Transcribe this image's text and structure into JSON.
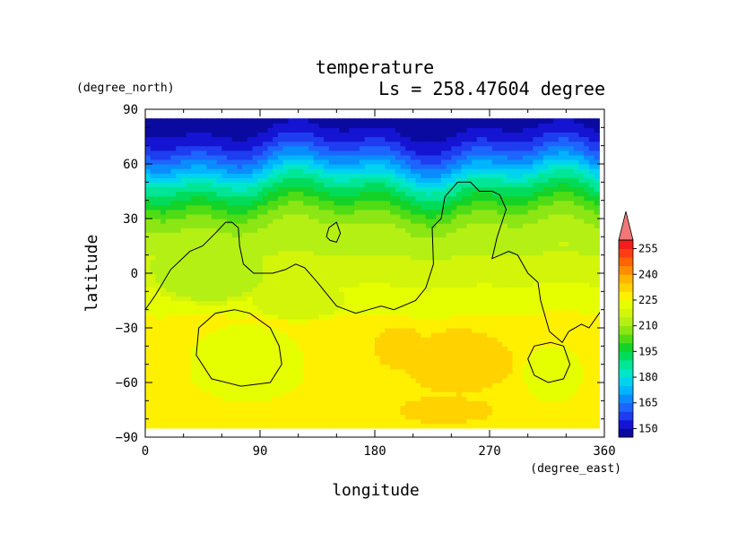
{
  "chart_data": {
    "type": "heatmap",
    "title": "temperature",
    "subtitle": "Ls = 258.47604 degree",
    "xlabel": "longitude",
    "ylabel": "latitude",
    "x_units": "(degree_east)",
    "y_units": "(degree_north)",
    "xlim": [
      0,
      360
    ],
    "ylim": [
      -90,
      90
    ],
    "x_ticks": [
      0,
      90,
      180,
      270,
      360
    ],
    "y_ticks": [
      -90,
      -60,
      -30,
      0,
      30,
      60,
      90
    ],
    "x_tick_labels": [
      "0",
      "90",
      "180",
      "270",
      "360"
    ],
    "y_tick_labels": [
      "−90",
      "−60",
      "−30",
      "0",
      "30",
      "60",
      "90"
    ],
    "colorbar": {
      "levels": [
        145,
        150,
        155,
        160,
        165,
        170,
        175,
        180,
        185,
        190,
        195,
        200,
        205,
        210,
        215,
        220,
        225,
        230,
        235,
        240,
        245,
        250,
        255,
        260
      ],
      "colors": [
        "#0a0aa0",
        "#1414d2",
        "#1e3cf0",
        "#1e64ff",
        "#0a8cff",
        "#00b4ff",
        "#00d2f0",
        "#00e6c8",
        "#00e696",
        "#00dc5a",
        "#14d228",
        "#50dc14",
        "#8ce614",
        "#b4f014",
        "#d2f50a",
        "#e6ff00",
        "#fff000",
        "#ffd200",
        "#ffb400",
        "#ff8c00",
        "#ff6400",
        "#ff3c14",
        "#f01e1e",
        "#f07878"
      ],
      "tick_labels": [
        "150",
        "165",
        "180",
        "195",
        "210",
        "225",
        "240",
        "255"
      ],
      "tick_values": [
        150,
        165,
        180,
        195,
        210,
        225,
        240,
        255
      ],
      "extend": "max"
    },
    "zonal_profile": {
      "latitudes": [
        -87,
        -80,
        -70,
        -60,
        -50,
        -40,
        -30,
        -20,
        -10,
        0,
        10,
        20,
        30,
        35,
        40,
        45,
        50,
        55,
        60,
        65,
        70,
        75,
        80,
        87
      ],
      "temperatures": [
        228,
        229,
        229,
        229,
        230,
        229,
        228,
        224,
        221,
        218,
        215,
        213,
        208,
        203,
        198,
        192,
        186,
        178,
        170,
        163,
        157,
        152,
        149,
        147
      ]
    },
    "regions": [
      {
        "shape": "ellipse",
        "lon": 80,
        "lat": -50,
        "dlon": 55,
        "dlat": 25,
        "value": 222
      },
      {
        "shape": "ellipse",
        "lon": 320,
        "lat": -55,
        "dlon": 30,
        "dlat": 20,
        "value": 224
      },
      {
        "shape": "ellipse",
        "lon": 245,
        "lat": -48,
        "dlon": 45,
        "dlat": 20,
        "value": 232
      },
      {
        "shape": "ellipse",
        "lon": 200,
        "lat": -40,
        "dlon": 22,
        "dlat": 12,
        "value": 232
      },
      {
        "shape": "ellipse",
        "lon": 235,
        "lat": -75,
        "dlon": 40,
        "dlat": 8,
        "value": 232
      },
      {
        "shape": "ellipse",
        "lon": 50,
        "lat": 0,
        "dlon": 50,
        "dlat": 18,
        "value": 212
      },
      {
        "shape": "ellipse",
        "lon": 120,
        "lat": -15,
        "dlon": 40,
        "dlat": 12,
        "value": 215
      }
    ],
    "contour_lines": [
      {
        "name": "coastline",
        "points": [
          [
            0,
            -20
          ],
          [
            8,
            -12
          ],
          [
            20,
            2
          ],
          [
            35,
            12
          ],
          [
            45,
            15
          ],
          [
            55,
            22
          ],
          [
            63,
            28
          ],
          [
            68,
            28
          ],
          [
            73,
            25
          ],
          [
            74,
            15
          ],
          [
            77,
            5
          ],
          [
            85,
            0
          ],
          [
            100,
            0
          ],
          [
            110,
            2
          ],
          [
            118,
            5
          ],
          [
            125,
            3
          ],
          [
            135,
            -5
          ],
          [
            150,
            -18
          ],
          [
            165,
            -22
          ],
          [
            175,
            -20
          ],
          [
            185,
            -18
          ],
          [
            195,
            -20
          ],
          [
            212,
            -15
          ],
          [
            220,
            -8
          ],
          [
            226,
            5
          ],
          [
            225,
            25
          ],
          [
            232,
            30
          ],
          [
            235,
            42
          ],
          [
            245,
            50
          ],
          [
            255,
            50
          ],
          [
            262,
            45
          ],
          [
            272,
            45
          ],
          [
            278,
            43
          ],
          [
            283,
            35
          ],
          [
            276,
            20
          ],
          [
            272,
            8
          ],
          [
            285,
            12
          ],
          [
            292,
            10
          ],
          [
            300,
            0
          ],
          [
            308,
            -5
          ],
          [
            310,
            -15
          ],
          [
            317,
            -32
          ],
          [
            322,
            -35
          ],
          [
            327,
            -38
          ],
          [
            332,
            -32
          ],
          [
            342,
            -28
          ],
          [
            348,
            -30
          ],
          [
            360,
            -18
          ]
        ]
      },
      {
        "name": "loop-west",
        "points": [
          [
            70,
            -20
          ],
          [
            82,
            -22
          ],
          [
            98,
            -30
          ],
          [
            105,
            -40
          ],
          [
            107,
            -50
          ],
          [
            98,
            -60
          ],
          [
            75,
            -62
          ],
          [
            52,
            -58
          ],
          [
            40,
            -45
          ],
          [
            42,
            -30
          ],
          [
            55,
            -22
          ],
          [
            70,
            -20
          ]
        ]
      },
      {
        "name": "loop-north",
        "points": [
          [
            142,
            20
          ],
          [
            144,
            25
          ],
          [
            150,
            28
          ],
          [
            153,
            22
          ],
          [
            150,
            17
          ],
          [
            145,
            18
          ],
          [
            142,
            20
          ]
        ]
      },
      {
        "name": "loop-east",
        "points": [
          [
            318,
            -38
          ],
          [
            328,
            -40
          ],
          [
            333,
            -50
          ],
          [
            328,
            -58
          ],
          [
            316,
            -60
          ],
          [
            305,
            -56
          ],
          [
            300,
            -47
          ],
          [
            305,
            -40
          ],
          [
            318,
            -38
          ]
        ]
      }
    ]
  }
}
